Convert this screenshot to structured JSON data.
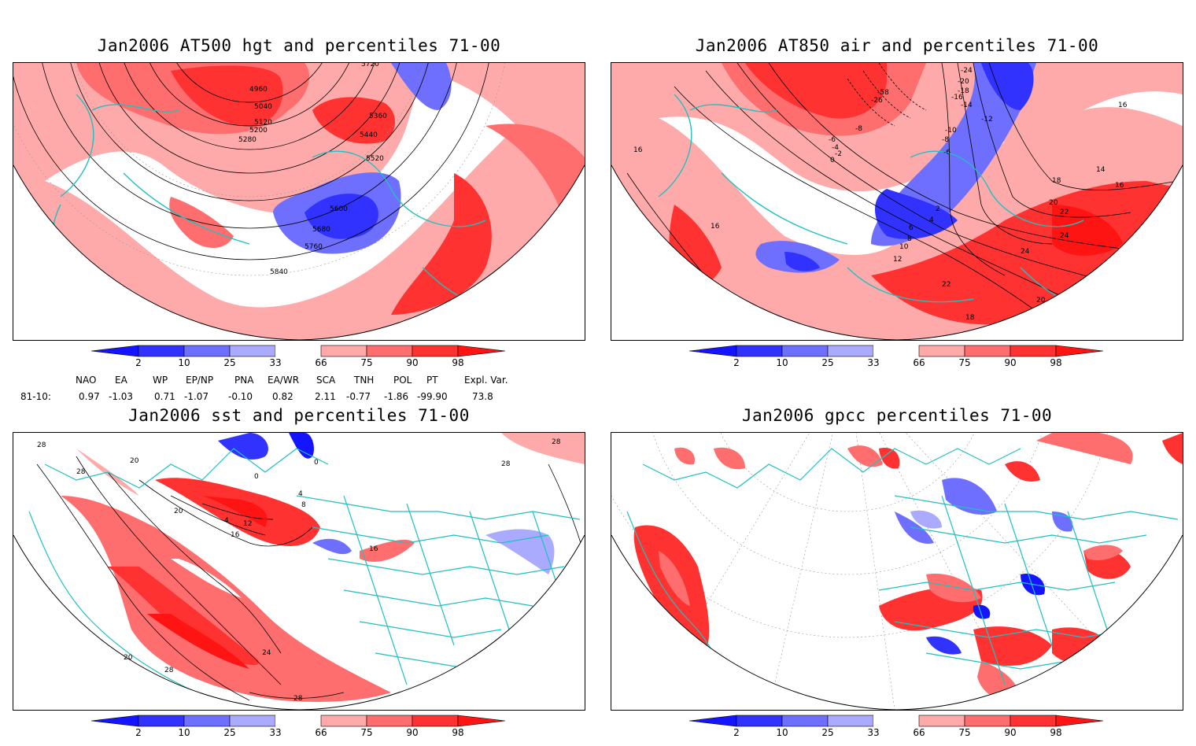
{
  "panels": [
    {
      "title": "Jan2006 AT500 hgt and percentiles 71-00",
      "contour_labels": [
        "4960",
        "5040",
        "5120",
        "5200",
        "5280",
        "5360",
        "5440",
        "5520",
        "5600",
        "5680",
        "5760",
        "5840",
        "5720"
      ]
    },
    {
      "title": "Jan2006 AT850 air and percentiles 71-00",
      "contour_labels": [
        "-58",
        "-26",
        "-18",
        "-8",
        "-6",
        "-4",
        "-2",
        "0",
        "2",
        "4",
        "6",
        "8",
        "10",
        "12",
        "14",
        "16",
        "18",
        "20",
        "22",
        "24",
        "-20",
        "-24",
        "-12",
        "-14",
        "-16",
        "-10"
      ]
    },
    {
      "title": "Jan2006 sst and percentiles 71-00",
      "contour_labels": [
        "28",
        "20",
        "16",
        "12",
        "8",
        "4",
        "0",
        "24"
      ]
    },
    {
      "title": "Jan2006 gpcc percentiles 71-00",
      "contour_labels": []
    }
  ],
  "colorbar": {
    "labels": [
      "2",
      "10",
      "25",
      "33",
      "66",
      "75",
      "90",
      "98"
    ],
    "colors": {
      "below_2": "#1414ff",
      "2_10": "#3232ff",
      "10_25": "#6e6eff",
      "25_33": "#aaaaff",
      "33_66": "#ffffff",
      "66_75": "#ffaaaa",
      "75_90": "#ff6e6e",
      "90_98": "#ff3232",
      "above_98": "#ff1414"
    }
  },
  "indices": {
    "headers": [
      "NAO",
      "EA",
      "WP",
      "EP/NP",
      "PNA",
      "EA/WR",
      "SCA",
      "TNH",
      "POL",
      "PT",
      "Expl. Var."
    ],
    "row_label": "81-10:",
    "values": [
      "0.97",
      "-1.03",
      "0.71",
      "-1.07",
      "-0.10",
      "0.82",
      "2.11",
      "-0.77",
      "-1.86",
      "-99.90",
      "73.8"
    ]
  },
  "map_colors": {
    "coastline": "#20c0c0",
    "contour": "#000000",
    "graticule": "#999999"
  }
}
